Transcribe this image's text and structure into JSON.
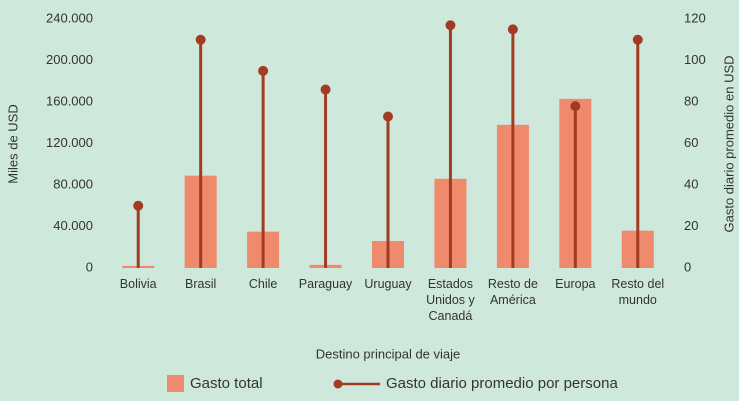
{
  "chart_data": {
    "type": "bar-lollipop",
    "x_label": "Destino principal de viaje",
    "y_label": "Miles de USD",
    "y2_label": "Gasto diario promedio en USD",
    "categories": [
      "Bolivia",
      "Brasil",
      "Chile",
      "Paraguay",
      "Uruguay",
      "Estados Unidos y Canadá",
      "Resto de América",
      "Europa",
      "Resto del mundo"
    ],
    "series": [
      {
        "name": "Gasto total",
        "color": "#f08a6c",
        "values": [
          2000,
          89000,
          35000,
          3000,
          26000,
          86000,
          138000,
          163000,
          36000
        ]
      },
      {
        "name": "Gasto diario promedio por persona",
        "color": "#a33b22",
        "axis": "y2",
        "values": [
          30,
          110,
          95,
          86,
          73,
          117,
          115,
          78,
          110
        ]
      }
    ],
    "ylim": [
      0,
      240000
    ],
    "yticks": [
      0,
      {
        "value": 40000,
        "label": "40.000"
      },
      {
        "value": 80000,
        "label": "80.000"
      },
      {
        "value": 120000,
        "label": "120.000"
      },
      {
        "value": 160000,
        "label": "160.000"
      },
      {
        "value": 200000,
        "label": "200.000"
      },
      {
        "value": 240000,
        "label": "240.000"
      }
    ],
    "y2lim": [
      0,
      120
    ],
    "y2ticks": [
      0,
      20,
      40,
      60,
      80,
      100,
      120
    ],
    "grid": false
  }
}
